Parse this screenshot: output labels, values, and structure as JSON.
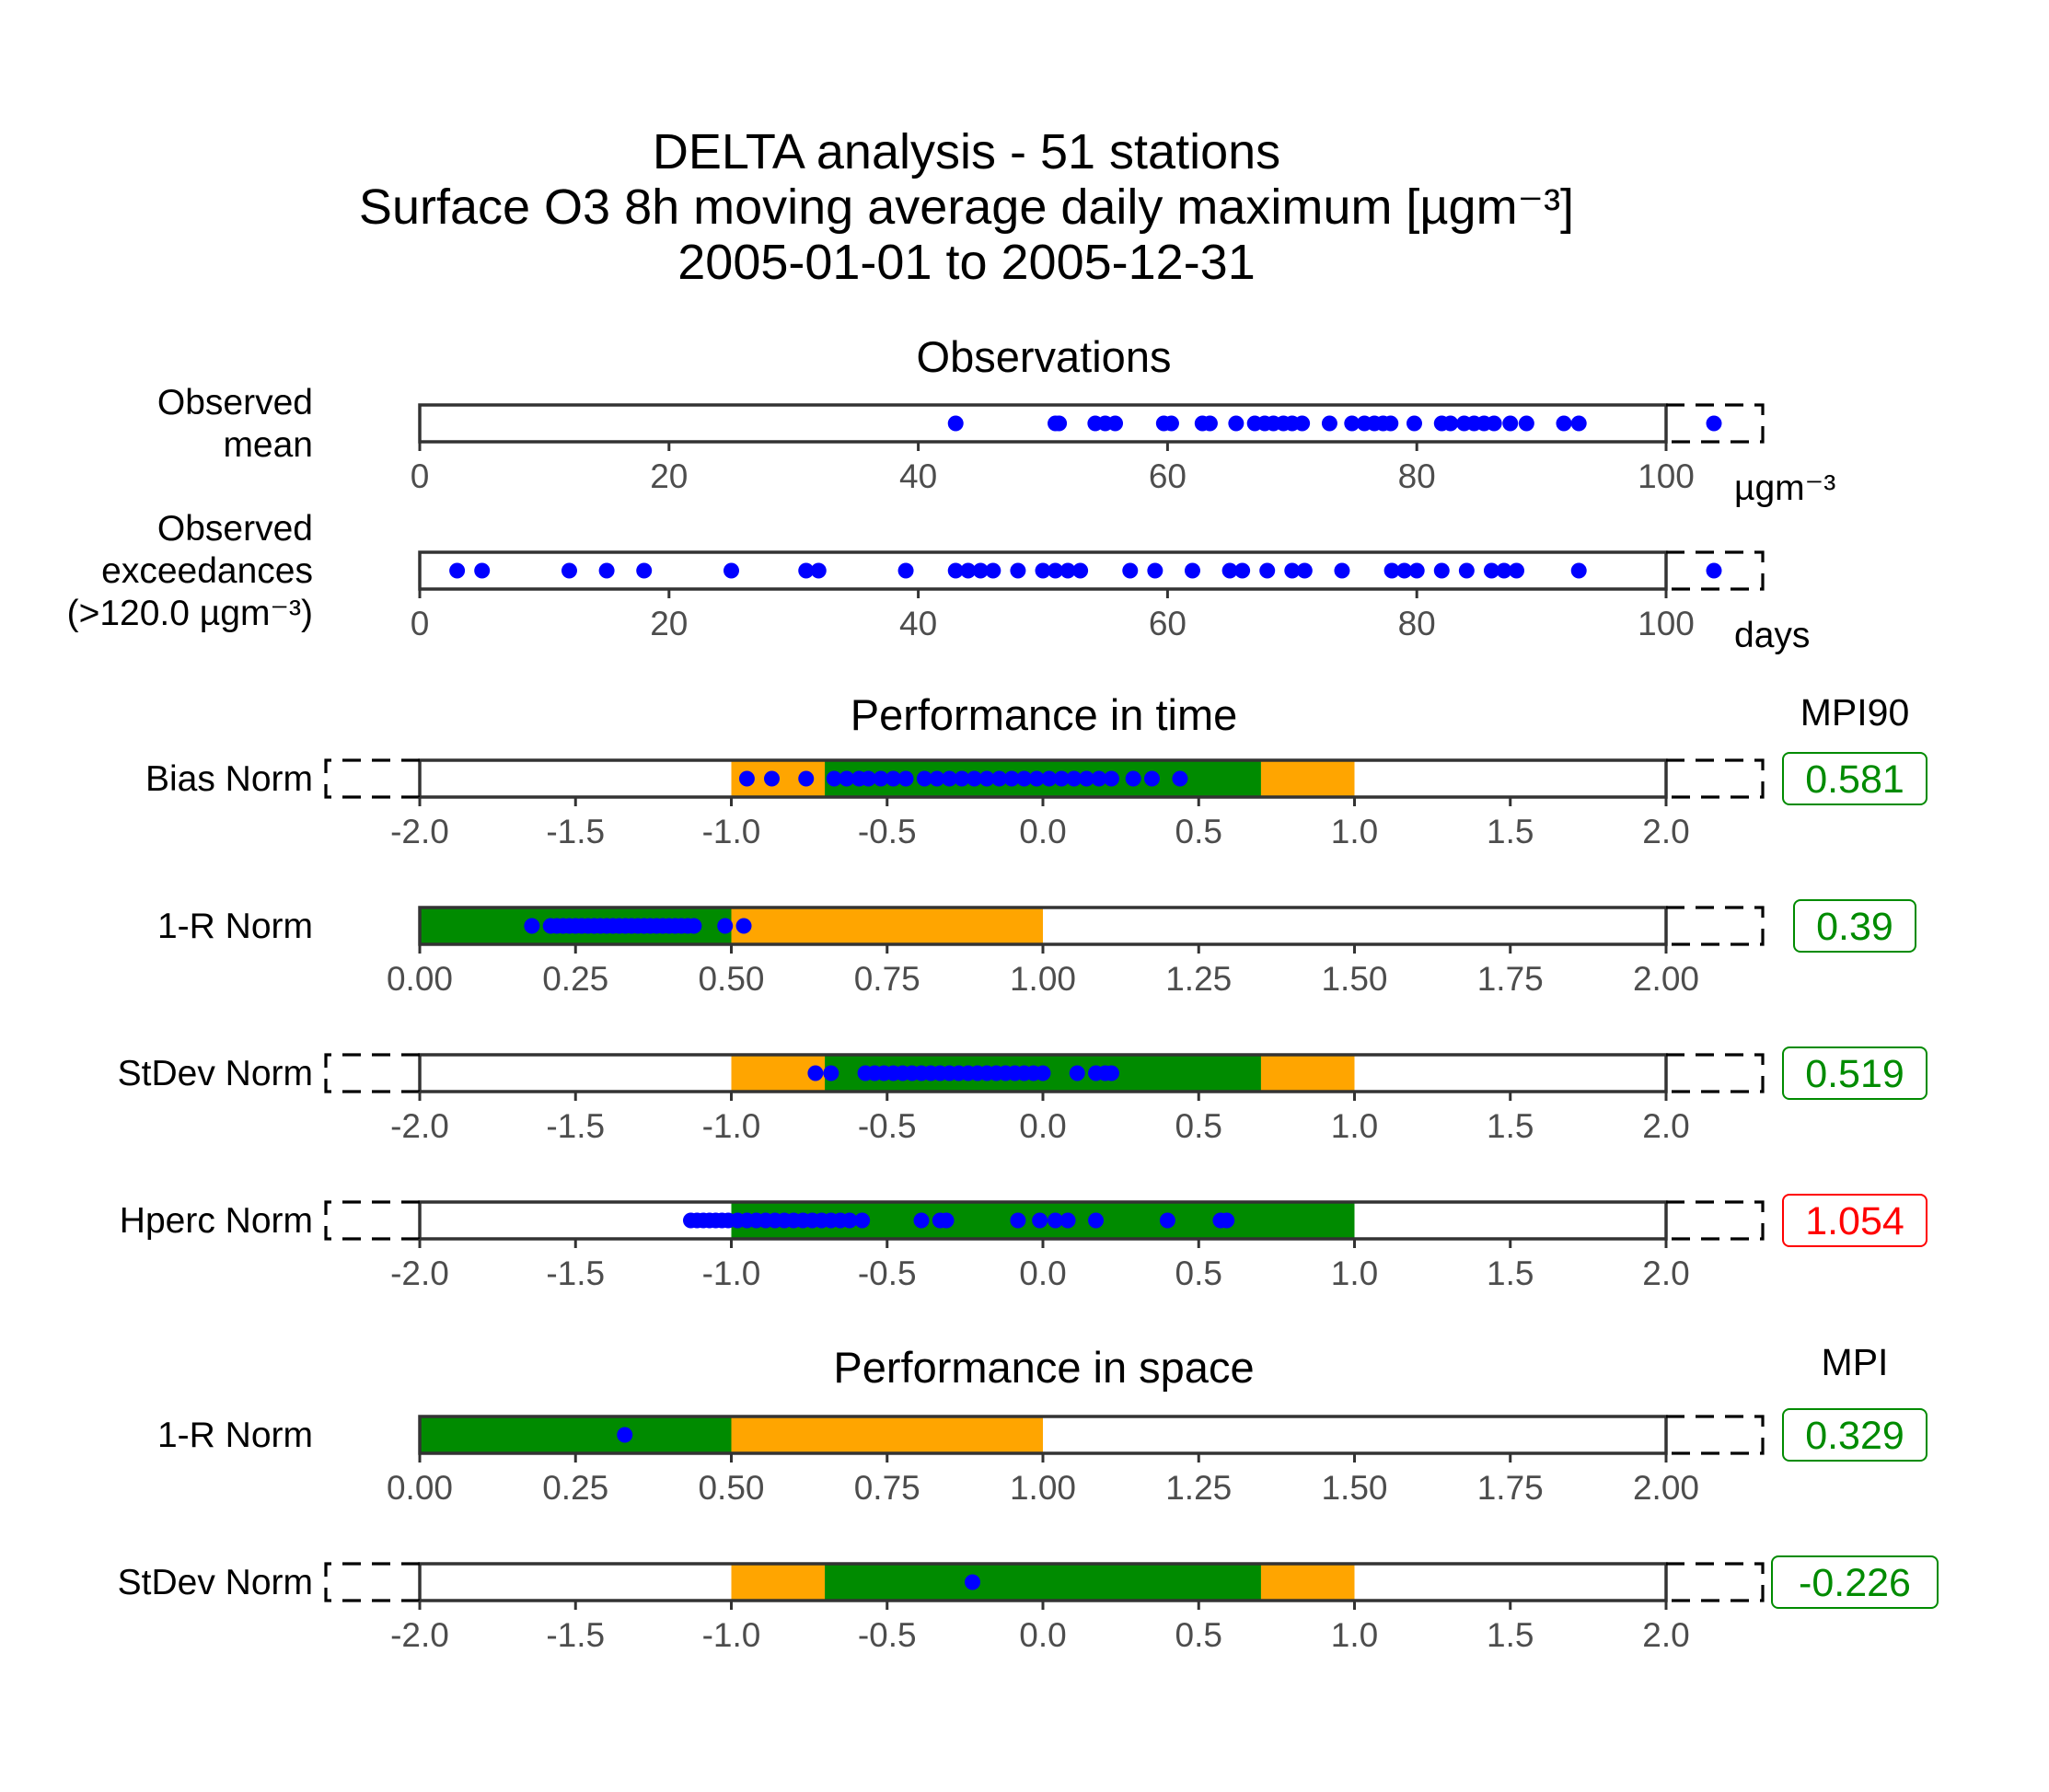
{
  "title_lines": [
    "DELTA analysis - 51 stations",
    "Surface O3 8h moving average daily maximum [µgm⁻³]",
    "2005-01-01 to 2005-12-31"
  ],
  "sections": {
    "observations": "Observations",
    "time": "Performance in time",
    "space": "Performance in space"
  },
  "mpi_headers": {
    "time": "MPI90",
    "space": "MPI"
  },
  "colors": {
    "green": "#008B00",
    "orange": "#FFA500",
    "dot": "#0000FF",
    "ok": "#008B00",
    "bad": "#FF0000"
  },
  "chart_data": [
    {
      "type": "scatter",
      "label": [
        "Observed",
        "mean"
      ],
      "unit": "µgm⁻³",
      "xlim": [
        0,
        100
      ],
      "ticks": [
        "0",
        "20",
        "40",
        "60",
        "80",
        "100"
      ],
      "bands": [],
      "points": [
        43,
        51,
        51.3,
        54.2,
        55,
        55.8,
        59.7,
        60.3,
        62.8,
        63.4,
        65.5,
        67,
        67.8,
        68.5,
        69.3,
        70,
        70.8,
        73,
        74.8,
        75.8,
        76.6,
        77.3,
        77.9,
        79.8,
        82,
        82.7,
        83.8,
        84.6,
        85.4,
        86.2,
        87.5,
        88.8,
        91.8,
        93
      ],
      "overflow": [
        "right"
      ],
      "mpi": null
    },
    {
      "type": "scatter",
      "label": [
        "Observed",
        "exceedances",
        "(>120.0 µgm⁻³)"
      ],
      "unit": "days",
      "xlim": [
        0,
        100
      ],
      "ticks": [
        "0",
        "20",
        "40",
        "60",
        "80",
        "100"
      ],
      "bands": [],
      "points": [
        3,
        5,
        12,
        15,
        18,
        25,
        31,
        32,
        39,
        43,
        44,
        45,
        46,
        48,
        50,
        51,
        52,
        53,
        57,
        59,
        62,
        65,
        66,
        68,
        70,
        71,
        74,
        78,
        79,
        80,
        82,
        84,
        86,
        87,
        88,
        93
      ],
      "overflow": [
        "right"
      ],
      "mpi": null
    },
    {
      "type": "scatter",
      "label": [
        "Bias Norm"
      ],
      "xlim": [
        -2,
        2
      ],
      "ticks": [
        "-2.0",
        "-1.5",
        "-1.0",
        "-0.5",
        "0.0",
        "0.5",
        "1.0",
        "1.5",
        "2.0"
      ],
      "bands": [
        {
          "from": -1.0,
          "to": -0.7,
          "color": "orange"
        },
        {
          "from": -0.7,
          "to": 0.7,
          "color": "green"
        },
        {
          "from": 0.7,
          "to": 1.0,
          "color": "orange"
        }
      ],
      "points": [
        -0.95,
        -0.87,
        -0.76,
        -0.67,
        -0.63,
        -0.59,
        -0.56,
        -0.52,
        -0.48,
        -0.44,
        -0.38,
        -0.34,
        -0.3,
        -0.26,
        -0.22,
        -0.18,
        -0.14,
        -0.1,
        -0.06,
        -0.02,
        0.02,
        0.06,
        0.1,
        0.14,
        0.18,
        0.22,
        0.29,
        0.35,
        0.44
      ],
      "overflow": [
        "left",
        "right"
      ],
      "mpi": {
        "value": "0.581",
        "status": "ok"
      }
    },
    {
      "type": "scatter",
      "label": [
        "1-R Norm"
      ],
      "xlim": [
        0,
        2
      ],
      "ticks": [
        "0.00",
        "0.25",
        "0.50",
        "0.75",
        "1.00",
        "1.25",
        "1.50",
        "1.75",
        "2.00"
      ],
      "bands": [
        {
          "from": 0,
          "to": 0.5,
          "color": "green"
        },
        {
          "from": 0.5,
          "to": 1.0,
          "color": "orange"
        }
      ],
      "points": [
        0.18,
        0.21,
        0.22,
        0.23,
        0.24,
        0.25,
        0.26,
        0.27,
        0.28,
        0.29,
        0.3,
        0.31,
        0.32,
        0.33,
        0.34,
        0.35,
        0.36,
        0.37,
        0.38,
        0.39,
        0.4,
        0.41,
        0.42,
        0.43,
        0.44,
        0.49,
        0.52
      ],
      "overflow": [
        "right"
      ],
      "mpi": {
        "value": "0.39",
        "status": "ok"
      }
    },
    {
      "type": "scatter",
      "label": [
        "StDev Norm"
      ],
      "xlim": [
        -2,
        2
      ],
      "ticks": [
        "-2.0",
        "-1.5",
        "-1.0",
        "-0.5",
        "0.0",
        "0.5",
        "1.0",
        "1.5",
        "2.0"
      ],
      "bands": [
        {
          "from": -1.0,
          "to": -0.7,
          "color": "orange"
        },
        {
          "from": -0.7,
          "to": 0.7,
          "color": "green"
        },
        {
          "from": 0.7,
          "to": 1.0,
          "color": "orange"
        }
      ],
      "points": [
        -0.73,
        -0.68,
        -0.57,
        -0.54,
        -0.51,
        -0.48,
        -0.45,
        -0.42,
        -0.39,
        -0.36,
        -0.33,
        -0.3,
        -0.27,
        -0.24,
        -0.21,
        -0.18,
        -0.15,
        -0.12,
        -0.09,
        -0.06,
        -0.03,
        0.0,
        0.11,
        0.17,
        0.2,
        0.22
      ],
      "overflow": [
        "left",
        "right"
      ],
      "mpi": {
        "value": "0.519",
        "status": "ok"
      }
    },
    {
      "type": "scatter",
      "label": [
        "Hperc Norm"
      ],
      "xlim": [
        -2,
        2
      ],
      "ticks": [
        "-2.0",
        "-1.5",
        "-1.0",
        "-0.5",
        "0.0",
        "0.5",
        "1.0",
        "1.5",
        "2.0"
      ],
      "bands": [
        {
          "from": -1.0,
          "to": 1.0,
          "color": "green"
        }
      ],
      "points": [
        -1.13,
        -1.11,
        -1.09,
        -1.07,
        -1.05,
        -1.03,
        -1.01,
        -0.98,
        -0.95,
        -0.92,
        -0.89,
        -0.86,
        -0.83,
        -0.8,
        -0.77,
        -0.74,
        -0.71,
        -0.68,
        -0.65,
        -0.62,
        -0.58,
        -0.39,
        -0.33,
        -0.31,
        -0.08,
        -0.01,
        0.04,
        0.08,
        0.17,
        0.4,
        0.57,
        0.59
      ],
      "overflow": [
        "left",
        "right"
      ],
      "mpi": {
        "value": "1.054",
        "status": "bad"
      }
    },
    {
      "type": "scatter",
      "label": [
        "1-R Norm"
      ],
      "xlim": [
        0,
        2
      ],
      "ticks": [
        "0.00",
        "0.25",
        "0.50",
        "0.75",
        "1.00",
        "1.25",
        "1.50",
        "1.75",
        "2.00"
      ],
      "bands": [
        {
          "from": 0,
          "to": 0.5,
          "color": "green"
        },
        {
          "from": 0.5,
          "to": 1.0,
          "color": "orange"
        }
      ],
      "points": [
        0.329
      ],
      "overflow": [
        "right"
      ],
      "mpi": {
        "value": "0.329",
        "status": "ok"
      }
    },
    {
      "type": "scatter",
      "label": [
        "StDev Norm"
      ],
      "xlim": [
        -2,
        2
      ],
      "ticks": [
        "-2.0",
        "-1.5",
        "-1.0",
        "-0.5",
        "0.0",
        "0.5",
        "1.0",
        "1.5",
        "2.0"
      ],
      "bands": [
        {
          "from": -1.0,
          "to": -0.7,
          "color": "orange"
        },
        {
          "from": -0.7,
          "to": 0.7,
          "color": "green"
        },
        {
          "from": 0.7,
          "to": 1.0,
          "color": "orange"
        }
      ],
      "points": [
        -0.226
      ],
      "overflow": [
        "left",
        "right"
      ],
      "mpi": {
        "value": "-0.226",
        "status": "ok"
      }
    }
  ]
}
